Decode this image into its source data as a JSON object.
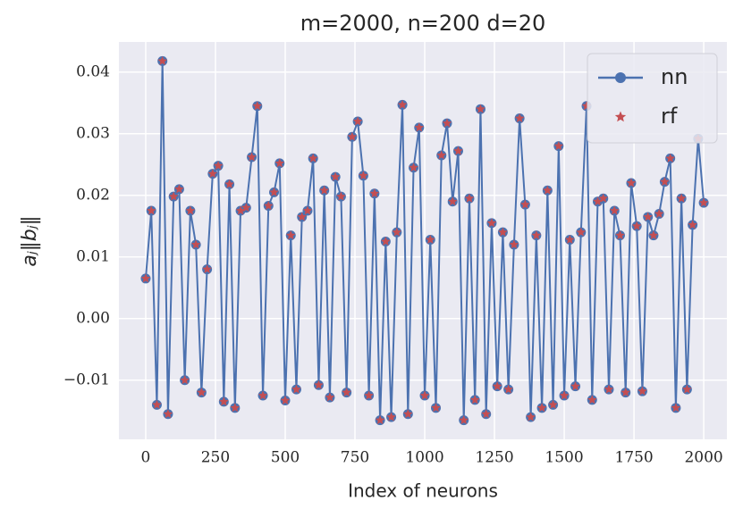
{
  "chart_data": {
    "type": "line",
    "title": "m=2000, n=200 d=20",
    "x_label": "Index of neurons",
    "y_label": "aⱼ‖bⱼ‖",
    "x": [
      0,
      20,
      40,
      60,
      80,
      100,
      120,
      140,
      160,
      180,
      200,
      220,
      240,
      260,
      280,
      300,
      320,
      340,
      360,
      380,
      400,
      420,
      440,
      460,
      480,
      500,
      520,
      540,
      560,
      580,
      600,
      620,
      640,
      660,
      680,
      700,
      720,
      740,
      760,
      780,
      800,
      820,
      840,
      860,
      880,
      900,
      920,
      940,
      960,
      980,
      1000,
      1020,
      1040,
      1060,
      1080,
      1100,
      1120,
      1140,
      1160,
      1180,
      1200,
      1220,
      1240,
      1260,
      1280,
      1300,
      1320,
      1340,
      1360,
      1380,
      1400,
      1420,
      1440,
      1460,
      1480,
      1500,
      1520,
      1540,
      1560,
      1580,
      1600,
      1620,
      1640,
      1660,
      1680,
      1700,
      1720,
      1740,
      1760,
      1780,
      1800,
      1820,
      1840,
      1860,
      1880,
      1900,
      1920,
      1940,
      1960,
      1980,
      2000
    ],
    "series": [
      {
        "name": "nn",
        "color": "#4c72b0",
        "marker": "circle",
        "values": [
          0.0065,
          0.0175,
          -0.014,
          0.0418,
          -0.0155,
          0.0198,
          0.021,
          -0.01,
          0.0175,
          0.012,
          -0.012,
          0.008,
          0.0235,
          0.0248,
          -0.0135,
          0.0218,
          -0.0145,
          0.0175,
          0.018,
          0.0262,
          0.0345,
          -0.0125,
          0.0183,
          0.0205,
          0.0252,
          -0.0133,
          0.0135,
          -0.0115,
          0.0165,
          0.0175,
          0.026,
          -0.0108,
          0.0208,
          -0.0128,
          0.023,
          0.0198,
          -0.012,
          0.0295,
          0.032,
          0.0232,
          -0.0125,
          0.0203,
          -0.0165,
          0.0125,
          -0.016,
          0.014,
          0.0347,
          -0.0155,
          0.0245,
          0.031,
          -0.0125,
          0.0128,
          -0.0145,
          0.0265,
          0.0317,
          0.019,
          0.0272,
          -0.0165,
          0.0195,
          -0.0132,
          0.034,
          -0.0155,
          0.0155,
          -0.011,
          0.014,
          -0.0115,
          0.012,
          0.0325,
          0.0185,
          -0.016,
          0.0135,
          -0.0145,
          0.0208,
          -0.014,
          0.028,
          -0.0125,
          0.0128,
          -0.011,
          0.014,
          0.0345,
          -0.0132,
          0.019,
          0.0195,
          -0.0115,
          0.0175,
          0.0135,
          -0.012,
          0.022,
          0.015,
          -0.0118,
          0.0165,
          0.0135,
          0.017,
          0.0222,
          0.026,
          -0.0145,
          0.0195,
          -0.0115,
          0.0152,
          0.0292,
          0.0188
        ]
      },
      {
        "name": "rf",
        "color": "#c44e52",
        "marker": "star",
        "values": [
          0.0065,
          0.0175,
          -0.014,
          0.0418,
          -0.0155,
          0.0198,
          0.021,
          -0.01,
          0.0175,
          0.012,
          -0.012,
          0.008,
          0.0235,
          0.0248,
          -0.0135,
          0.0218,
          -0.0145,
          0.0175,
          0.018,
          0.0262,
          0.0345,
          -0.0125,
          0.0183,
          0.0205,
          0.0252,
          -0.0133,
          0.0135,
          -0.0115,
          0.0165,
          0.0175,
          0.026,
          -0.0108,
          0.0208,
          -0.0128,
          0.023,
          0.0198,
          -0.012,
          0.0295,
          0.032,
          0.0232,
          -0.0125,
          0.0203,
          -0.0165,
          0.0125,
          -0.016,
          0.014,
          0.0347,
          -0.0155,
          0.0245,
          0.031,
          -0.0125,
          0.0128,
          -0.0145,
          0.0265,
          0.0317,
          0.019,
          0.0272,
          -0.0165,
          0.0195,
          -0.0132,
          0.034,
          -0.0155,
          0.0155,
          -0.011,
          0.014,
          -0.0115,
          0.012,
          0.0325,
          0.0185,
          -0.016,
          0.0135,
          -0.0145,
          0.0208,
          -0.014,
          0.028,
          -0.0125,
          0.0128,
          -0.011,
          0.014,
          0.0345,
          -0.0132,
          0.019,
          0.0195,
          -0.0115,
          0.0175,
          0.0135,
          -0.012,
          0.022,
          0.015,
          -0.0118,
          0.0165,
          0.0135,
          0.017,
          0.0222,
          0.026,
          -0.0145,
          0.0195,
          -0.0115,
          0.0152,
          0.0292,
          0.0188
        ]
      }
    ],
    "xlim": [
      -96,
      2083
    ],
    "ylim": [
      -0.0196,
      0.0449
    ],
    "xticks": [
      0,
      250,
      500,
      750,
      1000,
      1250,
      1500,
      1750,
      2000
    ],
    "yticks": [
      {
        "value": -0.01,
        "label": "−0.01"
      },
      {
        "value": 0,
        "label": "0.00"
      },
      0.01,
      0.02,
      0.03,
      0.04
    ],
    "grid": true,
    "legend": "upper right"
  }
}
